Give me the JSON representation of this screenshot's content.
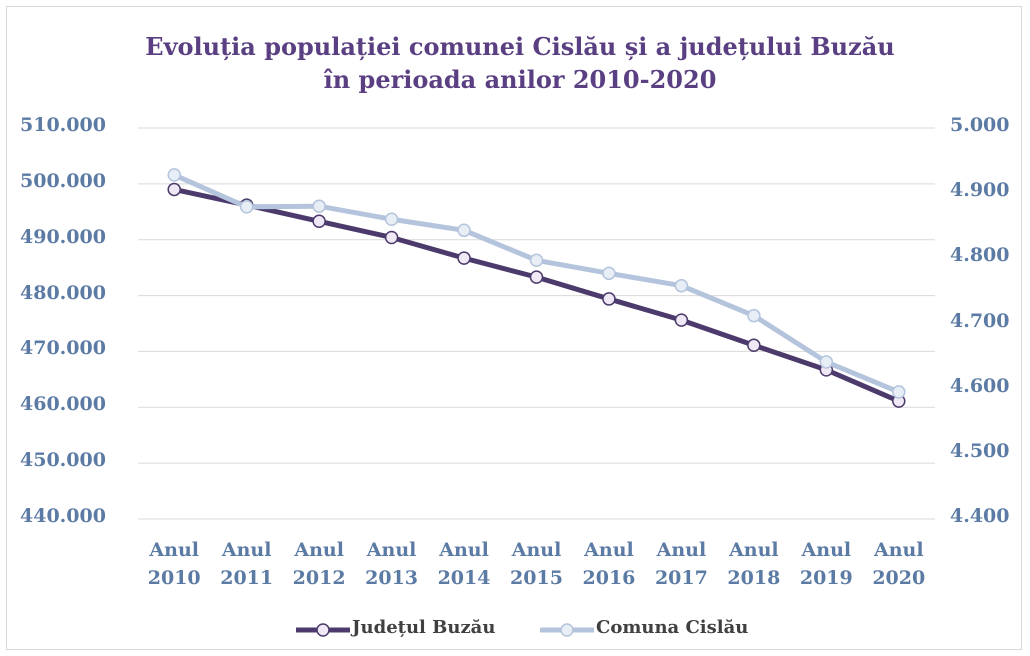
{
  "chart_data": {
    "type": "line",
    "title": "Evoluția populației comunei Cislău și a județului Buzău în perioada anilor 2010-2020",
    "categories": [
      "Anul 2010",
      "Anul 2011",
      "Anul 2012",
      "Anul 2013",
      "Anul 2014",
      "Anul 2015",
      "Anul 2016",
      "Anul 2017",
      "Anul 2018",
      "Anul 2019",
      "Anul 2020"
    ],
    "series": [
      {
        "name": "Județul Buzău",
        "color": "#4b3a6b",
        "values": [
          499000,
          496200,
          493300,
          490400,
          486700,
          483300,
          479400,
          475600,
          471100,
          466700,
          461100
        ]
      },
      {
        "name": "Comuna Cislău",
        "color": "#b4c4dc",
        "axis": "y2",
        "values": [
          4928,
          4879,
          4880,
          4860,
          4843,
          4797,
          4777,
          4758,
          4712,
          4641,
          4595
        ]
      }
    ],
    "ylim": [
      440000,
      510000
    ],
    "yticks": [
      {
        "value": 440000,
        "label": "440.000"
      },
      {
        "value": 450000,
        "label": "450.000"
      },
      {
        "value": 460000,
        "label": "460.000"
      },
      {
        "value": 470000,
        "label": "470.000"
      },
      {
        "value": 480000,
        "label": "480.000"
      },
      {
        "value": 490000,
        "label": "490.000"
      },
      {
        "value": 500000,
        "label": "500.000"
      },
      {
        "value": 510000,
        "label": "510.000"
      }
    ],
    "y2lim": [
      4400,
      5000
    ],
    "y2ticks": [
      {
        "value": 4400,
        "label": "4.400"
      },
      {
        "value": 4500,
        "label": "4.500"
      },
      {
        "value": 4600,
        "label": "4.600"
      },
      {
        "value": 4700,
        "label": "4.700"
      },
      {
        "value": 4800,
        "label": "4.800"
      },
      {
        "value": 4900,
        "label": "4.900"
      },
      {
        "value": 5000,
        "label": "5.000"
      }
    ],
    "grid": true,
    "legend": "bottom"
  }
}
